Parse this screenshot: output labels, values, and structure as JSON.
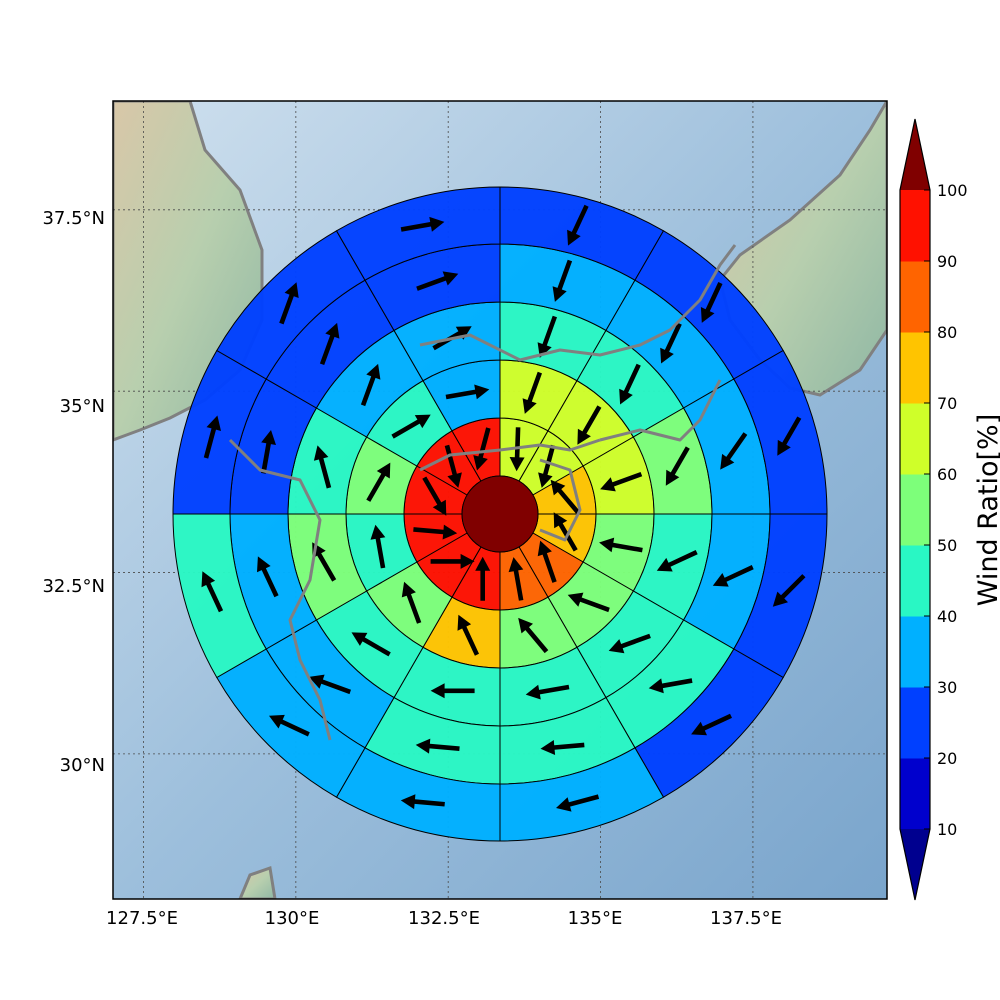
{
  "map": {
    "lon_range": [
      127.0,
      139.7
    ],
    "lat_range": [
      28.0,
      39.0
    ],
    "center": {
      "lon": 133.4,
      "lat": 33.65
    },
    "lon_ticks": [
      {
        "value": 127.5,
        "label": "127.5°E"
      },
      {
        "value": 130.0,
        "label": "130°E"
      },
      {
        "value": 132.5,
        "label": "132.5°E"
      },
      {
        "value": 135.0,
        "label": "135°E"
      },
      {
        "value": 137.5,
        "label": "137.5°E"
      }
    ],
    "lat_ticks": [
      {
        "value": 37.5,
        "label": "37.5°N"
      },
      {
        "value": 35.0,
        "label": "35°N"
      },
      {
        "value": 32.5,
        "label": "32.5°N"
      },
      {
        "value": 30.0,
        "label": "30°N"
      }
    ],
    "grid": true,
    "colors": {
      "coastline": "#808080",
      "ocean": "#8fb4d4",
      "land": "#b9c9a7",
      "cell_edge": "#000000",
      "arrow": "#000000"
    }
  },
  "chart_data": {
    "type": "polar-sector-map",
    "center_ratio": 100,
    "rings": [
      {
        "index": 1,
        "ratios": [
          60,
          60,
          70,
          70,
          80,
          80,
          90,
          90,
          90,
          90,
          90,
          90
        ],
        "arrow_dirs": [
          182,
          195,
          320,
          330,
          341,
          350,
          0,
          90,
          95,
          150,
          165,
          195
        ]
      },
      {
        "index": 2,
        "ratios": [
          60,
          60,
          60,
          50,
          50,
          50,
          70,
          50,
          40,
          50,
          40,
          30
        ],
        "arrow_dirs": [
          200,
          210,
          250,
          280,
          290,
          320,
          335,
          340,
          350,
          30,
          60,
          80
        ]
      },
      {
        "index": 3,
        "ratios": [
          40,
          40,
          50,
          40,
          40,
          40,
          40,
          40,
          50,
          40,
          30,
          30
        ],
        "arrow_dirs": [
          200,
          205,
          210,
          245,
          250,
          260,
          270,
          300,
          330,
          345,
          20,
          60
        ]
      },
      {
        "index": 4,
        "ratios": [
          30,
          30,
          30,
          30,
          40,
          40,
          40,
          30,
          30,
          20,
          20,
          20
        ],
        "arrow_dirs": [
          200,
          205,
          215,
          245,
          260,
          265,
          275,
          290,
          335,
          10,
          20,
          70
        ]
      },
      {
        "index": 5,
        "ratios": [
          20,
          20,
          20,
          20,
          20,
          30,
          30,
          30,
          40,
          20,
          20,
          20
        ],
        "arrow_dirs": [
          205,
          205,
          210,
          225,
          245,
          255,
          275,
          295,
          335,
          15,
          20,
          80
        ]
      }
    ]
  },
  "colorbar": {
    "label": "Wind Ratio[%]",
    "ticks": [
      10,
      20,
      30,
      40,
      50,
      60,
      70,
      80,
      90,
      100
    ],
    "colors": [
      "#0000cd",
      "#0040ff",
      "#00b0ff",
      "#29f7c4",
      "#7dff7a",
      "#cfff29",
      "#ffc400",
      "#ff6400",
      "#ff1100"
    ],
    "under_color": "#00008f",
    "over_color": "#800000"
  }
}
